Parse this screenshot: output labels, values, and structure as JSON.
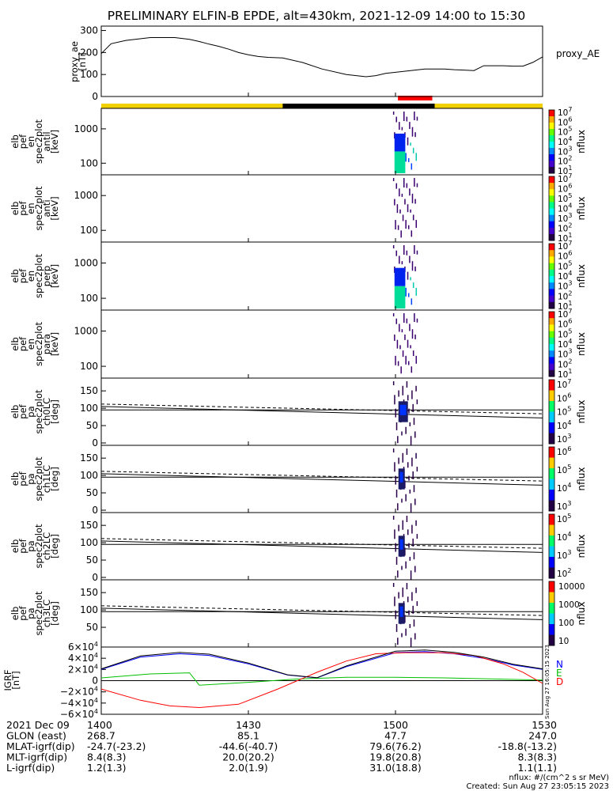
{
  "title": "PRELIMINARY ELFIN-B EPDE, alt=430km, 2021-12-09 14:00 to 15:30",
  "time_axis": {
    "ticks": [
      "1400",
      "1430",
      "1500",
      "1530"
    ],
    "tick_minutes": [
      0,
      30,
      60,
      90
    ],
    "range_minutes": [
      0,
      90
    ]
  },
  "flags": {
    "segments": [
      {
        "t0": 0,
        "t1": 37,
        "color": "#f0d000"
      },
      {
        "t0": 37,
        "t1": 68,
        "color": "#000000"
      },
      {
        "t0": 68,
        "t1": 90,
        "color": "#f0d000"
      }
    ],
    "red_bar": {
      "t0": 60.5,
      "t1": 67.5,
      "color": "#ff0000"
    }
  },
  "panels": {
    "ae": {
      "ylabel": [
        "proxy_ae",
        "[nT]"
      ],
      "series_label": "proxy_AE",
      "yticks": [
        "0",
        "100",
        "200",
        "300"
      ]
    },
    "spec": [
      {
        "ylabel": [
          "elb",
          "pef",
          "en",
          "spec2plot",
          "antil",
          "[keV]"
        ],
        "yticks": [
          "100",
          "1000"
        ],
        "cb_ticks": [
          "10<tspan dy='-5' font-size='8'>1</tspan>",
          "10<tspan dy='-5' font-size='8'>2</tspan>",
          "10<tspan dy='-5' font-size='8'>3</tspan>",
          "10<tspan dy='-5' font-size='8'>4</tspan>",
          "10<tspan dy='-5' font-size='8'>5</tspan>",
          "10<tspan dy='-5' font-size='8'>6</tspan>",
          "10<tspan dy='-5' font-size='8'>7</tspan>"
        ],
        "cb_label": "nflux"
      },
      {
        "ylabel": [
          "elb",
          "pef",
          "en",
          "spec2plot",
          "anti",
          "[keV]"
        ],
        "yticks": [
          "100",
          "1000"
        ],
        "cb_label": "nflux"
      },
      {
        "ylabel": [
          "elb",
          "pef",
          "en",
          "spec2plot",
          "perp",
          "[keV]"
        ],
        "yticks": [
          "100",
          "1000"
        ],
        "cb_label": "nflux"
      },
      {
        "ylabel": [
          "elb",
          "pef",
          "en",
          "spec2plot",
          "para",
          "[keV]"
        ],
        "yticks": [
          "100",
          "1000"
        ],
        "cb_label": "nflux"
      }
    ],
    "pa": [
      {
        "ylabel": [
          "elb",
          "pef",
          "pa",
          "spec2plot",
          "ch0LC",
          "[deg]"
        ],
        "yticks": [
          "0",
          "50",
          "100",
          "150"
        ],
        "cb_label": "nflux"
      },
      {
        "ylabel": [
          "elb",
          "pef",
          "pa",
          "spec2plot",
          "ch1LC",
          "[deg]"
        ],
        "yticks": [
          "0",
          "50",
          "100",
          "150"
        ],
        "cb_label": "nflux"
      },
      {
        "ylabel": [
          "elb",
          "pef",
          "pa",
          "spec2plot",
          "ch2LC",
          "[deg]"
        ],
        "yticks": [
          "0",
          "50",
          "100",
          "150"
        ],
        "cb_label": "nflux"
      },
      {
        "ylabel": [
          "elb",
          "pef",
          "pa",
          "spec2plot",
          "ch3LC",
          "[deg]"
        ],
        "yticks": [
          "50",
          "100",
          "150"
        ],
        "cb_label": "nflux",
        "cb_ticks_plain": [
          "10",
          "100",
          "1000",
          "10000"
        ]
      }
    ],
    "igrf": {
      "ylabel": [
        "IGRF",
        "[nT]"
      ],
      "legend": [
        {
          "label": "N",
          "color": "#0000ff"
        },
        {
          "label": "E",
          "color": "#00c000"
        },
        {
          "label": "D",
          "color": "#ff0000"
        }
      ],
      "created_note": "Sun Aug 27 16:05:15 2023"
    }
  },
  "footer": {
    "rows": [
      {
        "label": "2021 Dec 09",
        "values": [
          "1400",
          "1430",
          "1500",
          "1530"
        ]
      },
      {
        "label": "GLON (east)",
        "values": [
          "268.7",
          "85.1",
          "47.7",
          "247.0"
        ]
      },
      {
        "label": "MLAT-igrf(dip)",
        "values": [
          "-24.7(-23.2)",
          "-44.6(-40.7)",
          "79.6(76.2)",
          "-18.8(-13.2)"
        ]
      },
      {
        "label": "MLT-igrf(dip)",
        "values": [
          "8.4(8.3)",
          "20.0(20.2)",
          "19.8(20.8)",
          "8.3(8.3)"
        ]
      },
      {
        "label": "L-igrf(dip)",
        "values": [
          "1.2(1.3)",
          "2.0(1.9)",
          "31.0(18.8)",
          "1.1(1.1)"
        ]
      }
    ],
    "units_note": "nflux: #/(cm^2 s sr MeV)",
    "created": "Created: Sun Aug 27 23:05:15 2023"
  },
  "chart_data": [
    {
      "type": "line",
      "title": "",
      "ylabel": "proxy_ae [nT]",
      "ylim": [
        0,
        320
      ],
      "series": [
        {
          "name": "proxy_AE",
          "x": [
            0,
            2,
            5,
            10,
            15,
            18,
            20,
            22,
            24,
            26,
            28,
            30,
            32,
            34,
            37,
            41,
            45,
            50,
            54,
            56,
            58,
            62,
            64,
            66,
            68,
            70,
            72,
            74,
            76,
            78,
            80,
            82,
            84,
            86,
            88,
            90
          ],
          "values": [
            195,
            240,
            255,
            268,
            268,
            260,
            250,
            238,
            228,
            215,
            200,
            190,
            182,
            178,
            175,
            155,
            125,
            100,
            90,
            95,
            105,
            115,
            120,
            125,
            125,
            125,
            122,
            120,
            118,
            140,
            140,
            140,
            138,
            138,
            155,
            180
          ]
        }
      ]
    },
    {
      "type": "line",
      "title": "",
      "ylabel": "IGRF [nT]",
      "ylim": [
        -60000,
        60000
      ],
      "series": [
        {
          "name": "N",
          "x": [
            0,
            8,
            16,
            22,
            30,
            38,
            44,
            50,
            60,
            66,
            72,
            78,
            84,
            90
          ],
          "values": [
            20000,
            42000,
            48000,
            45000,
            30000,
            10000,
            5000,
            25000,
            50000,
            52000,
            48000,
            40000,
            28000,
            20000
          ]
        },
        {
          "name": "E",
          "x": [
            0,
            10,
            18,
            20,
            30,
            40,
            50,
            60,
            70,
            80,
            90
          ],
          "values": [
            5000,
            12000,
            14000,
            -8000,
            -3000,
            3000,
            6000,
            6000,
            5000,
            3000,
            1000
          ]
        },
        {
          "name": "D",
          "x": [
            0,
            8,
            14,
            20,
            28,
            36,
            44,
            50,
            56,
            62,
            70,
            76,
            82,
            86,
            90
          ],
          "values": [
            -15000,
            -35000,
            -45000,
            -48000,
            -42000,
            -15000,
            15000,
            35000,
            48000,
            50000,
            50000,
            45000,
            30000,
            15000,
            -5000
          ]
        }
      ]
    }
  ]
}
